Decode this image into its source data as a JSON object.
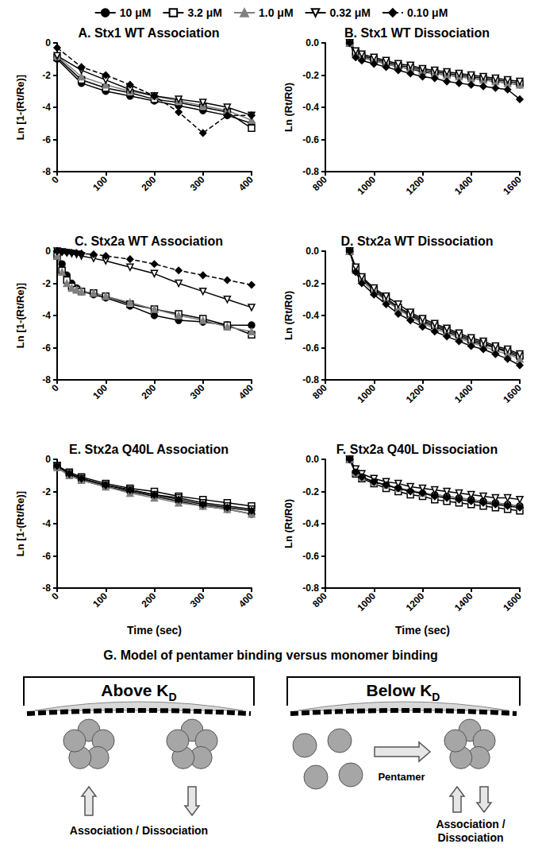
{
  "chart_data": [
    {
      "type": "line",
      "title": "A. Stx1 WT Association",
      "ylabel": "Ln [1-(Rt/Re)]",
      "legend": "top",
      "grid": false,
      "x": [
        0,
        50,
        100,
        150,
        200,
        250,
        300,
        350,
        400
      ],
      "xlim": [
        0,
        400
      ],
      "xticks": [
        0,
        100,
        200,
        300,
        400
      ],
      "ylim": [
        -8,
        0
      ],
      "yticks": [
        -8,
        -6,
        -4,
        -2,
        0
      ],
      "series": [
        {
          "name": "10 μM",
          "color": "#000000",
          "marker": "circle",
          "line_style": "solid",
          "values": [
            -1.0,
            -2.5,
            -3.0,
            -3.3,
            -3.6,
            -3.9,
            -4.2,
            -4.5,
            -5.0
          ]
        },
        {
          "name": "3.2 μM",
          "color": "#000000",
          "marker": "square-open",
          "line_style": "solid",
          "values": [
            -0.9,
            -2.3,
            -2.8,
            -3.1,
            -3.5,
            -3.7,
            -4.0,
            -4.3,
            -5.3
          ]
        },
        {
          "name": "1.0 μM",
          "color": "#808080",
          "marker": "triangle",
          "line_style": "solid",
          "values": [
            -0.8,
            -2.1,
            -2.6,
            -3.0,
            -3.3,
            -3.6,
            -3.9,
            -4.2,
            -4.8
          ]
        },
        {
          "name": "0.32 μM",
          "color": "#000000",
          "marker": "triangle-down-open",
          "line_style": "solid",
          "values": [
            -0.8,
            -1.7,
            -2.3,
            -2.9,
            -3.3,
            -3.5,
            -3.7,
            -4.0,
            -4.5
          ]
        },
        {
          "name": "0.10 μM",
          "color": "#000000",
          "marker": "diamond",
          "line_style": "dashed",
          "values": [
            -0.3,
            -1.5,
            -2.0,
            -2.6,
            -3.3,
            -4.3,
            -5.6,
            -4.5,
            -4.5
          ]
        }
      ]
    },
    {
      "type": "line",
      "title": "B. Stx1 WT Dissociation",
      "ylabel": "Ln (Rt/R0)",
      "grid": false,
      "x": [
        900,
        925,
        950,
        1000,
        1050,
        1100,
        1150,
        1200,
        1250,
        1300,
        1350,
        1400,
        1450,
        1500,
        1550,
        1600
      ],
      "xlim": [
        800,
        1600
      ],
      "xticks": [
        800,
        1000,
        1200,
        1400,
        1600
      ],
      "ylim": [
        -0.8,
        0
      ],
      "yticks": [
        -0.8,
        -0.6,
        -0.4,
        -0.2,
        {
          "value": 0,
          "label": "0.0"
        }
      ],
      "series": [
        {
          "name": "10 μM",
          "color": "#000000",
          "marker": "circle",
          "line_style": "solid",
          "values": [
            0,
            -0.07,
            -0.09,
            -0.11,
            -0.13,
            -0.15,
            -0.16,
            -0.18,
            -0.19,
            -0.2,
            -0.21,
            -0.22,
            -0.23,
            -0.24,
            -0.25,
            -0.26
          ]
        },
        {
          "name": "3.2 μM",
          "color": "#000000",
          "marker": "square-open",
          "line_style": "solid",
          "values": [
            0,
            -0.06,
            -0.08,
            -0.1,
            -0.12,
            -0.14,
            -0.15,
            -0.17,
            -0.18,
            -0.19,
            -0.2,
            -0.21,
            -0.22,
            -0.23,
            -0.24,
            -0.25
          ]
        },
        {
          "name": "1.0 μM",
          "color": "#808080",
          "marker": "triangle",
          "line_style": "solid",
          "values": [
            0,
            -0.07,
            -0.09,
            -0.11,
            -0.13,
            -0.15,
            -0.16,
            -0.17,
            -0.19,
            -0.2,
            -0.21,
            -0.22,
            -0.23,
            -0.24,
            -0.25,
            -0.26
          ]
        },
        {
          "name": "0.32 μM",
          "color": "#000000",
          "marker": "triangle-down-open",
          "line_style": "solid",
          "values": [
            0,
            -0.05,
            -0.07,
            -0.09,
            -0.11,
            -0.13,
            -0.14,
            -0.16,
            -0.17,
            -0.18,
            -0.19,
            -0.2,
            -0.21,
            -0.22,
            -0.23,
            -0.24
          ]
        },
        {
          "name": "0.10 μM",
          "color": "#000000",
          "marker": "diamond",
          "line_style": "solid",
          "values": [
            0,
            -0.09,
            -0.11,
            -0.13,
            -0.15,
            -0.17,
            -0.19,
            -0.21,
            -0.22,
            -0.24,
            -0.25,
            -0.26,
            -0.27,
            -0.28,
            -0.29,
            -0.35
          ]
        }
      ]
    },
    {
      "type": "line",
      "title": "C. Stx2a WT Association",
      "ylabel": "Ln [1-(Rt/Re)]",
      "grid": false,
      "x": [
        0,
        10,
        20,
        30,
        40,
        50,
        75,
        100,
        150,
        200,
        250,
        300,
        350,
        400
      ],
      "xlim": [
        0,
        400
      ],
      "xticks": [
        0,
        100,
        200,
        300,
        400
      ],
      "ylim": [
        -8,
        0
      ],
      "yticks": [
        -8,
        -6,
        -4,
        -2,
        0
      ],
      "series": [
        {
          "name": "10 μM",
          "color": "#000000",
          "marker": "circle",
          "line_style": "solid",
          "values": [
            0,
            -0.8,
            -1.5,
            -2.0,
            -2.3,
            -2.5,
            -2.7,
            -2.9,
            -3.4,
            -4.0,
            -4.3,
            -4.4,
            -4.6,
            -4.6
          ]
        },
        {
          "name": "3.2 μM",
          "color": "#000000",
          "marker": "square-open",
          "line_style": "solid",
          "values": [
            -0.3,
            -1.2,
            -1.8,
            -2.2,
            -2.4,
            -2.5,
            -2.6,
            -2.8,
            -3.3,
            -3.6,
            -3.9,
            -4.2,
            -4.6,
            -5.2
          ]
        },
        {
          "name": "1.0 μM",
          "color": "#808080",
          "marker": "triangle",
          "line_style": "solid",
          "values": [
            -0.3,
            -1.3,
            -2.0,
            -2.3,
            -2.4,
            -2.5,
            -2.6,
            -2.8,
            -3.2,
            -3.6,
            -4.0,
            -4.3,
            -4.7,
            -5.0
          ]
        },
        {
          "name": "0.32 μM",
          "color": "#000000",
          "marker": "triangle-down-open",
          "line_style": "solid",
          "values": [
            0,
            -0.05,
            -0.1,
            -0.15,
            -0.2,
            -0.3,
            -0.45,
            -0.6,
            -1.0,
            -1.4,
            -2.0,
            -2.5,
            -3.0,
            -3.5
          ]
        },
        {
          "name": "0.10 μM",
          "color": "#000000",
          "marker": "diamond",
          "line_style": "dashed",
          "values": [
            0,
            -0.05,
            -0.08,
            -0.1,
            -0.12,
            -0.15,
            -0.2,
            -0.3,
            -0.5,
            -0.8,
            -1.2,
            -1.5,
            -1.8,
            -2.1
          ]
        }
      ]
    },
    {
      "type": "line",
      "title": "D. Stx2a WT Dissociation",
      "ylabel": "Ln (Rt/R0)",
      "grid": false,
      "x": [
        900,
        925,
        950,
        1000,
        1050,
        1100,
        1150,
        1200,
        1250,
        1300,
        1350,
        1400,
        1450,
        1500,
        1550,
        1600
      ],
      "xlim": [
        800,
        1600
      ],
      "xticks": [
        800,
        1000,
        1200,
        1400,
        1600
      ],
      "ylim": [
        -0.8,
        0
      ],
      "yticks": [
        -0.8,
        -0.6,
        -0.4,
        -0.2,
        {
          "value": 0,
          "label": "0.0"
        }
      ],
      "series": [
        {
          "name": "10 μM",
          "color": "#000000",
          "marker": "circle",
          "line_style": "solid",
          "values": [
            0,
            -0.12,
            -0.18,
            -0.25,
            -0.3,
            -0.36,
            -0.4,
            -0.44,
            -0.47,
            -0.5,
            -0.53,
            -0.56,
            -0.58,
            -0.6,
            -0.63,
            -0.66
          ]
        },
        {
          "name": "3.2 μM",
          "color": "#000000",
          "marker": "square-open",
          "line_style": "solid",
          "values": [
            0,
            -0.11,
            -0.17,
            -0.24,
            -0.29,
            -0.35,
            -0.39,
            -0.43,
            -0.46,
            -0.49,
            -0.52,
            -0.55,
            -0.57,
            -0.6,
            -0.62,
            -0.65
          ]
        },
        {
          "name": "1.0 μM",
          "color": "#808080",
          "marker": "triangle",
          "line_style": "solid",
          "values": [
            0,
            -0.12,
            -0.18,
            -0.25,
            -0.31,
            -0.36,
            -0.41,
            -0.45,
            -0.48,
            -0.51,
            -0.54,
            -0.57,
            -0.59,
            -0.62,
            -0.64,
            -0.67
          ]
        },
        {
          "name": "0.32 μM",
          "color": "#000000",
          "marker": "triangle-down-open",
          "line_style": "solid",
          "values": [
            0,
            -0.1,
            -0.16,
            -0.23,
            -0.28,
            -0.33,
            -0.38,
            -0.42,
            -0.45,
            -0.48,
            -0.51,
            -0.54,
            -0.56,
            -0.59,
            -0.61,
            -0.64
          ]
        },
        {
          "name": "0.10 μM",
          "color": "#000000",
          "marker": "diamond",
          "line_style": "solid",
          "values": [
            0,
            -0.13,
            -0.2,
            -0.27,
            -0.33,
            -0.39,
            -0.43,
            -0.47,
            -0.5,
            -0.53,
            -0.56,
            -0.59,
            -0.61,
            -0.64,
            -0.67,
            -0.71
          ]
        }
      ]
    },
    {
      "type": "line",
      "title": "E. Stx2a Q40L Association",
      "ylabel": "Ln [1-(Rt/Re)]",
      "xlabel": "Time (sec)",
      "grid": false,
      "x": [
        0,
        25,
        50,
        100,
        150,
        200,
        250,
        300,
        350,
        400
      ],
      "xlim": [
        0,
        400
      ],
      "xticks": [
        0,
        100,
        200,
        300,
        400
      ],
      "ylim": [
        -8,
        0
      ],
      "yticks": [
        -8,
        -6,
        -4,
        -2,
        0
      ],
      "series": [
        {
          "name": "10 μM",
          "color": "#000000",
          "marker": "circle",
          "line_style": "solid",
          "values": [
            -0.5,
            -1.0,
            -1.3,
            -1.7,
            -2.0,
            -2.3,
            -2.6,
            -2.9,
            -3.1,
            -3.4
          ]
        },
        {
          "name": "3.2 μM",
          "color": "#000000",
          "marker": "square-open",
          "line_style": "solid",
          "values": [
            -0.4,
            -0.8,
            -1.1,
            -1.5,
            -1.8,
            -2.0,
            -2.3,
            -2.5,
            -2.7,
            -2.9
          ]
        },
        {
          "name": "1.0 μM",
          "color": "#808080",
          "marker": "triangle",
          "line_style": "solid",
          "values": [
            -0.5,
            -1.0,
            -1.3,
            -1.7,
            -2.1,
            -2.4,
            -2.7,
            -2.9,
            -3.1,
            -3.4
          ]
        },
        {
          "name": "0.32 μM",
          "color": "#000000",
          "marker": "triangle-down-open",
          "line_style": "solid",
          "values": [
            -0.4,
            -0.9,
            -1.2,
            -1.6,
            -1.9,
            -2.2,
            -2.4,
            -2.7,
            -2.9,
            -3.1
          ]
        },
        {
          "name": "0.10 μM",
          "color": "#000000",
          "marker": "diamond",
          "line_style": "solid",
          "values": [
            -0.4,
            -0.9,
            -1.2,
            -1.6,
            -1.9,
            -2.2,
            -2.5,
            -2.8,
            -3.0,
            -3.2
          ]
        }
      ]
    },
    {
      "type": "line",
      "title": "F. Stx2a Q40L Dissociation",
      "ylabel": "Ln (Rt/R0)",
      "xlabel": "Time (sec)",
      "grid": false,
      "x": [
        900,
        925,
        950,
        1000,
        1050,
        1100,
        1150,
        1200,
        1250,
        1300,
        1350,
        1400,
        1450,
        1500,
        1550,
        1600
      ],
      "xlim": [
        800,
        1600
      ],
      "xticks": [
        800,
        1000,
        1200,
        1400,
        1600
      ],
      "ylim": [
        -0.8,
        0
      ],
      "yticks": [
        -0.8,
        -0.6,
        -0.4,
        -0.2,
        {
          "value": 0,
          "label": "0.0"
        }
      ],
      "series": [
        {
          "name": "10 μM",
          "color": "#000000",
          "marker": "circle",
          "line_style": "solid",
          "values": [
            0,
            -0.08,
            -0.11,
            -0.14,
            -0.16,
            -0.18,
            -0.2,
            -0.21,
            -0.22,
            -0.23,
            -0.24,
            -0.25,
            -0.26,
            -0.27,
            -0.28,
            -0.29
          ]
        },
        {
          "name": "3.2 μM",
          "color": "#000000",
          "marker": "square-open",
          "line_style": "solid",
          "values": [
            0,
            -0.09,
            -0.12,
            -0.15,
            -0.18,
            -0.2,
            -0.22,
            -0.23,
            -0.25,
            -0.26,
            -0.27,
            -0.28,
            -0.29,
            -0.3,
            -0.31,
            -0.32
          ]
        },
        {
          "name": "1.0 μM",
          "color": "#808080",
          "marker": "triangle",
          "line_style": "solid",
          "values": [
            0,
            -0.08,
            -0.11,
            -0.14,
            -0.16,
            -0.18,
            -0.19,
            -0.21,
            -0.22,
            -0.23,
            -0.24,
            -0.25,
            -0.26,
            -0.27,
            -0.28,
            -0.29
          ]
        },
        {
          "name": "0.32 μM",
          "color": "#000000",
          "marker": "triangle-down-open",
          "line_style": "solid",
          "values": [
            0,
            -0.06,
            -0.09,
            -0.12,
            -0.14,
            -0.15,
            -0.17,
            -0.18,
            -0.19,
            -0.2,
            -0.21,
            -0.22,
            -0.23,
            -0.24,
            -0.24,
            -0.25
          ]
        },
        {
          "name": "0.10 μM",
          "color": "#000000",
          "marker": "diamond",
          "line_style": "solid",
          "values": [
            0,
            -0.08,
            -0.11,
            -0.14,
            -0.16,
            -0.18,
            -0.2,
            -0.21,
            -0.23,
            -0.24,
            -0.25,
            -0.26,
            -0.27,
            -0.28,
            -0.29,
            -0.3
          ]
        }
      ]
    }
  ],
  "diagram": {
    "title": "G. Model of pentamer binding versus monomer binding",
    "panels": [
      {
        "heading": {
          "text": "Above K",
          "subscript": "D"
        },
        "arrow_label": "Association / Dissociation"
      },
      {
        "heading": {
          "text": "Below K",
          "subscript": "D"
        },
        "transition_label": "Pentamer",
        "arrow_label": "Association / Dissociation"
      }
    ]
  }
}
